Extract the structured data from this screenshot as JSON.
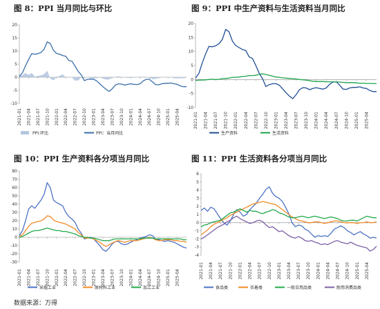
{
  "source_note": "数据来源：万得",
  "chart_data": [
    {
      "id": "fig8",
      "type": "line",
      "title": "图 8：PPI 当月同比与环比",
      "ylim": [
        -10,
        20
      ],
      "yticks": [
        "20",
        "15",
        "10",
        "5",
        "0",
        "-5",
        "-10"
      ],
      "x_tick_labels": [
        "2021-01",
        "2021-04",
        "2021-07",
        "2021-10",
        "2022-01",
        "2022-04",
        "2022-07",
        "2022-10",
        "2023-01",
        "2023-04",
        "2023-07",
        "2023-10",
        "2024-01",
        "2024-04",
        "2024-07",
        "2024-10",
        "2025-01",
        "2025-04"
      ],
      "grid": false,
      "legend_position": "bottom",
      "series": [
        {
          "name": "PPI:环比",
          "kind": "area",
          "color": "#b4c7e0",
          "values": [
            0.3,
            0.8,
            1.6,
            0.9,
            1.6,
            0.3,
            0.5,
            0.7,
            1.2,
            2.5,
            -0.5,
            -1.2,
            0.2,
            0.5,
            1.1,
            0.0,
            0.1,
            -0.1,
            -1.3,
            -1.2,
            -0.1,
            0.0,
            0.1,
            -0.5,
            -0.4,
            -0.4,
            0.0,
            -0.5,
            -0.9,
            -0.8,
            -0.2,
            0.2,
            0.4,
            0.0,
            -0.1,
            -0.3,
            -0.2,
            -0.2,
            -0.1,
            0.2,
            0.2,
            0.2,
            -0.2,
            -0.7,
            -0.6,
            -0.3,
            -0.1,
            0.1,
            -0.1,
            -0.1,
            -0.4,
            -0.4,
            -0.4,
            -0.4,
            -0.2
          ]
        },
        {
          "name": "PPI：当月同比",
          "kind": "line",
          "color": "#3a6ea8",
          "values": [
            0.3,
            1.7,
            4.4,
            6.8,
            9.0,
            8.8,
            9.0,
            9.5,
            10.7,
            13.5,
            12.9,
            10.3,
            9.1,
            8.8,
            8.3,
            8.0,
            6.4,
            6.1,
            4.2,
            2.3,
            0.9,
            -1.3,
            -0.8,
            -0.7,
            -0.8,
            -1.4,
            -2.5,
            -3.6,
            -4.6,
            -5.4,
            -4.4,
            -3.0,
            -2.5,
            -2.6,
            -3.0,
            -2.7,
            -2.5,
            -2.7,
            -2.8,
            -2.5,
            -1.4,
            -0.8,
            -0.8,
            -1.8,
            -2.8,
            -2.9,
            -2.5,
            -2.3,
            -2.3,
            -2.2,
            -2.5,
            -2.7,
            -3.3,
            -3.6,
            -3.6
          ]
        }
      ]
    },
    {
      "id": "fig9",
      "type": "line",
      "title": "图 9：PPI 中生产资料与生活资料当月同比",
      "ylim": [
        -10,
        20
      ],
      "yticks": [
        "20",
        "15",
        "10",
        "5",
        "0",
        "-5",
        "-10"
      ],
      "x_tick_labels": [
        "2021-01",
        "2021-04",
        "2021-07",
        "2021-10",
        "2022-01",
        "2022-04",
        "2022-07",
        "2022-10",
        "2023-01",
        "2023-04",
        "2023-07",
        "2023-10",
        "2024-01",
        "2024-04",
        "2024-07",
        "2024-10",
        "2025-01",
        "2025-04"
      ],
      "grid": false,
      "legend_position": "bottom",
      "series": [
        {
          "name": "生产资料",
          "color": "#1f4e96",
          "values": [
            0.5,
            2.2,
            5.9,
            9.1,
            11.8,
            11.7,
            12.0,
            12.8,
            14.3,
            17.9,
            17.0,
            13.7,
            12.1,
            11.4,
            10.7,
            10.3,
            8.1,
            7.5,
            5.0,
            2.2,
            0.3,
            -2.5,
            -1.8,
            -1.5,
            -1.5,
            -2.0,
            -3.3,
            -4.7,
            -5.9,
            -6.8,
            -5.4,
            -3.6,
            -2.9,
            -3.0,
            -3.6,
            -3.2,
            -2.9,
            -3.2,
            -3.4,
            -3.0,
            -1.7,
            -0.9,
            -0.8,
            -2.0,
            -3.4,
            -3.5,
            -3.0,
            -2.8,
            -2.8,
            -2.6,
            -3.0,
            -3.2,
            -3.9,
            -4.3,
            -4.3
          ]
        },
        {
          "name": "生活资料",
          "color": "#1aa34a",
          "values": [
            -0.3,
            -0.2,
            -0.2,
            -0.1,
            0.0,
            0.1,
            0.0,
            0.1,
            0.3,
            0.4,
            0.5,
            0.8,
            0.8,
            0.9,
            1.1,
            1.2,
            1.4,
            1.4,
            1.5,
            1.9,
            2.0,
            1.8,
            1.5,
            1.2,
            0.9,
            0.8,
            0.6,
            0.5,
            0.4,
            0.3,
            0.2,
            0.0,
            -0.1,
            -0.2,
            -0.4,
            -0.6,
            -0.7,
            -0.7,
            -0.7,
            -0.8,
            -0.8,
            -0.8,
            -0.8,
            -0.9,
            -1.0,
            -1.1,
            -1.1,
            -1.1,
            -1.2,
            -1.3,
            -1.3,
            -1.4,
            -1.4,
            -1.4,
            -1.5
          ]
        }
      ]
    },
    {
      "id": "fig10",
      "type": "line",
      "title": "图 10：PPI 生产资料各分项当月同比",
      "ylim": [
        -30,
        80
      ],
      "yticks": [
        "80",
        "70",
        "60",
        "50",
        "40",
        "30",
        "20",
        "10",
        "0",
        "-10",
        "-20",
        "-30"
      ],
      "x_tick_labels": [
        "2021-01",
        "2021-04",
        "2021-07",
        "2021-10",
        "2022-01",
        "2022-04",
        "2022-07",
        "2022-10",
        "2023-01",
        "2023-04",
        "2023-07",
        "2023-10",
        "2024-01",
        "2024-04",
        "2024-07",
        "2024-10",
        "2025-01",
        "2025-04"
      ],
      "grid": false,
      "legend_position": "bottom",
      "series": [
        {
          "name": "采掘工业",
          "color": "#4a72c4",
          "values": [
            2,
            8,
            20,
            34,
            38,
            35,
            40,
            45,
            52,
            66,
            60,
            45,
            42,
            40,
            38,
            30,
            25,
            22,
            18,
            10,
            5,
            -2,
            -1,
            0,
            -2,
            -6,
            -10,
            -15,
            -17,
            -13,
            -8,
            -5,
            -5,
            -8,
            -9,
            -8,
            -6,
            -4,
            -3,
            -1,
            0,
            1,
            3,
            2,
            -2,
            -3,
            -4,
            -5,
            -4,
            -5,
            -6,
            -8,
            -10,
            -12,
            -13
          ]
        },
        {
          "name": "原材料工业",
          "color": "#f08a24",
          "values": [
            1,
            3,
            8,
            13,
            17,
            18,
            19,
            20,
            22,
            26,
            25,
            21,
            19,
            18,
            17,
            16,
            14,
            12,
            10,
            6,
            3,
            -1,
            -1,
            -1,
            -2,
            -4,
            -6,
            -9,
            -11,
            -9,
            -7,
            -5,
            -4,
            -5,
            -6,
            -5,
            -4,
            -4,
            -4,
            -3,
            -2,
            -1,
            0,
            -1,
            -3,
            -4,
            -4,
            -3,
            -3,
            -3,
            -4,
            -4,
            -5,
            -5,
            -6
          ]
        },
        {
          "name": "加工工业",
          "color": "#22a84a",
          "values": [
            0,
            1,
            3,
            5,
            7,
            8,
            8,
            9,
            10,
            11,
            10,
            9,
            8,
            8,
            7,
            7,
            6,
            5,
            4,
            2,
            1,
            0,
            0,
            -1,
            -1,
            -2,
            -3,
            -4,
            -4,
            -4,
            -3,
            -2,
            -2,
            -2,
            -2,
            -2,
            -2,
            -2,
            -2,
            -2,
            -1,
            -1,
            -1,
            -1,
            -2,
            -2,
            -2,
            -2,
            -2,
            -2,
            -2,
            -2,
            -2,
            -3,
            -3
          ]
        }
      ]
    },
    {
      "id": "fig11",
      "type": "line",
      "title": "图 11：PPI 生活资料各分项当月同比",
      "ylim": [
        -4,
        6
      ],
      "yticks": [
        "6",
        "5",
        "4",
        "3",
        "2",
        "1",
        "0",
        "-1",
        "-2",
        "-3",
        "-4"
      ],
      "x_tick_labels": [
        "2021-01",
        "2021-04",
        "2021-07",
        "2021-10",
        "2022-01",
        "2022-04",
        "2022-07",
        "2022-10",
        "2023-01",
        "2023-04",
        "2023-07",
        "2023-10",
        "2024-01",
        "2024-04",
        "2024-07",
        "2024-10",
        "2025-01",
        "2025-04"
      ],
      "grid": false,
      "legend_position": "bottom",
      "series": [
        {
          "name": "食品类",
          "color": "#4a72c4",
          "values": [
            1.5,
            1.8,
            1.4,
            1.9,
            1.7,
            1.1,
            0.5,
            0.0,
            -0.3,
            0.2,
            1.0,
            1.6,
            1.3,
            0.8,
            1.0,
            1.6,
            2.0,
            2.4,
            3.0,
            3.5,
            4.1,
            4.4,
            3.6,
            3.2,
            3.0,
            2.6,
            1.9,
            1.1,
            0.0,
            -0.5,
            -0.3,
            -0.4,
            -0.8,
            -1.0,
            -1.4,
            -1.8,
            -1.6,
            -1.7,
            -1.6,
            -1.7,
            -1.3,
            -0.8,
            -0.6,
            -0.4,
            -0.6,
            -1.0,
            -1.2,
            -1.5,
            -1.3,
            -1.1,
            -1.4,
            -1.6,
            -1.9,
            -1.8,
            -1.9
          ]
        },
        {
          "name": "衣着类",
          "color": "#f08a24",
          "values": [
            -1.5,
            -1.2,
            -0.9,
            -0.5,
            -0.2,
            0.0,
            0.2,
            0.4,
            0.6,
            0.9,
            1.1,
            1.3,
            1.5,
            1.7,
            1.9,
            2.1,
            2.3,
            2.4,
            2.5,
            2.6,
            2.5,
            2.4,
            2.3,
            2.2,
            1.9,
            1.6,
            1.3,
            1.0,
            0.7,
            0.5,
            0.3,
            0.2,
            0.1,
            0.0,
            0.0,
            0.1,
            0.1,
            0.0,
            -0.1,
            0.0,
            0.1,
            0.2,
            0.2,
            0.1,
            0.0,
            0.0,
            0.0,
            0.0,
            -0.1,
            0.0,
            0.0,
            0.1,
            0.0,
            0.0,
            0.1
          ]
        },
        {
          "name": "一般日用品类",
          "color": "#22a84a",
          "values": [
            -0.5,
            -0.3,
            -0.2,
            0.0,
            0.1,
            0.2,
            0.3,
            0.6,
            0.9,
            1.2,
            1.3,
            1.5,
            1.7,
            1.5,
            1.3,
            1.5,
            1.4,
            1.4,
            1.2,
            1.1,
            1.3,
            1.4,
            1.6,
            1.5,
            1.2,
            1.1,
            0.9,
            0.7,
            0.6,
            0.6,
            0.7,
            0.8,
            0.7,
            0.6,
            0.7,
            0.8,
            0.7,
            0.6,
            0.5,
            0.6,
            0.7,
            0.6,
            0.5,
            0.3,
            0.2,
            0.2,
            0.3,
            0.3,
            0.2,
            0.4,
            0.6,
            0.8,
            0.7,
            0.6,
            0.6
          ]
        },
        {
          "name": "耐用消费品类",
          "color": "#7b5fa6",
          "values": [
            -2.0,
            -1.8,
            -1.5,
            -1.2,
            -0.9,
            -0.6,
            -0.4,
            -0.2,
            0.1,
            0.3,
            0.6,
            0.8,
            0.5,
            0.3,
            0.1,
            -0.1,
            0.0,
            0.2,
            0.3,
            0.1,
            -0.3,
            -0.6,
            -0.5,
            -0.8,
            -1.1,
            -1.0,
            -1.3,
            -1.6,
            -1.8,
            -1.9,
            -1.7,
            -1.9,
            -2.2,
            -2.3,
            -2.2,
            -2.4,
            -2.5,
            -2.7,
            -2.6,
            -2.7,
            -2.5,
            -2.3,
            -2.2,
            -2.4,
            -2.5,
            -2.6,
            -2.4,
            -2.6,
            -2.8,
            -2.9,
            -3.0,
            -3.1,
            -3.5,
            -3.3,
            -2.9
          ]
        }
      ]
    }
  ]
}
